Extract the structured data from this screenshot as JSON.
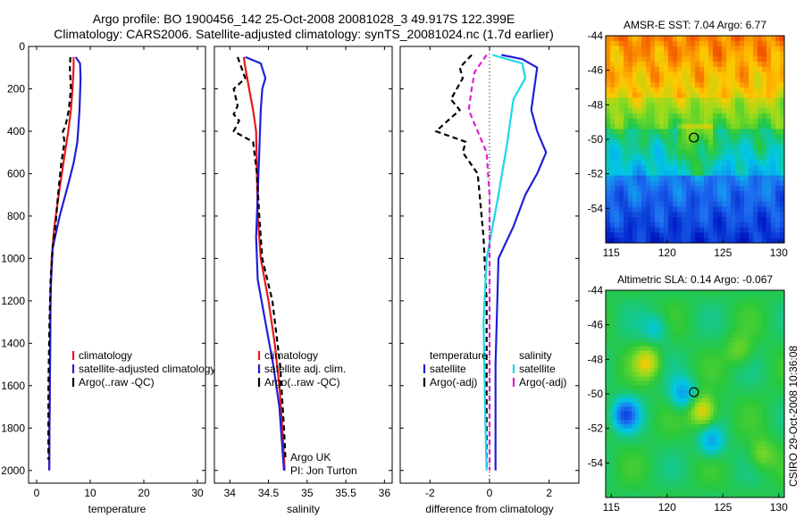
{
  "header": {
    "title_line1": "Argo profile: BO 1900456_142 25-Oct-2008 20081028_3 49.917S 122.399E",
    "title_line2": "Climatology: CARS2006. Satellite-adjusted climatology: synTS_20081024.nc (1.7d earlier)"
  },
  "side_label": "CSIRO 29-Oct-2008 10:36:08",
  "colors": {
    "climatology": "#e41a1c",
    "satellite": "#1f1fd8",
    "argo": "#000000",
    "satellite_salinity": "#19d9e8",
    "argo_salinity_adj": "#e01fd0"
  },
  "chart_data": [
    {
      "id": "temperature-panel",
      "type": "line",
      "xlabel": "temperature",
      "ylabel": "",
      "xlim": [
        -1.5,
        31.5
      ],
      "ylim": [
        2060,
        0
      ],
      "xticks": [
        0,
        10,
        20,
        30
      ],
      "yticks": [
        0,
        200,
        400,
        600,
        800,
        1000,
        1200,
        1400,
        1600,
        1800,
        2000
      ],
      "legend_position": "bottom-right",
      "annotations": [],
      "series": [
        {
          "name": "climatology",
          "color": "climatology",
          "dash": "",
          "x": [
            6.9,
            6.9,
            6.7,
            6.4,
            5.9,
            5.3,
            4.4,
            3.3,
            2.8,
            2.6,
            2.5,
            2.4,
            2.35
          ],
          "depth": [
            50,
            100,
            200,
            300,
            400,
            500,
            650,
            850,
            1000,
            1200,
            1500,
            1800,
            2000
          ]
        },
        {
          "name": "satellite-adjusted climatology",
          "color": "satellite",
          "dash": "",
          "x": [
            7.3,
            8.1,
            8.2,
            8.0,
            7.6,
            6.9,
            5.9,
            4.3,
            3.0,
            2.6,
            2.5,
            2.4,
            2.35
          ],
          "depth": [
            50,
            80,
            150,
            300,
            450,
            550,
            650,
            800,
            950,
            1150,
            1500,
            1800,
            2000
          ]
        },
        {
          "name": "Argo(..raw -QC)",
          "color": "argo",
          "dash": "6,4",
          "x": [
            6.3,
            6.2,
            6.4,
            6.0,
            5.6,
            5.3,
            4.9,
            5.2,
            4.6,
            4.0,
            3.5,
            3.0,
            2.6,
            2.4,
            2.2,
            2.2
          ],
          "depth": [
            50,
            100,
            200,
            300,
            350,
            380,
            400,
            450,
            550,
            700,
            850,
            950,
            1100,
            1300,
            1600,
            1950
          ]
        }
      ]
    },
    {
      "id": "salinity-panel",
      "type": "line",
      "xlabel": "salinity",
      "ylabel": "",
      "xlim": [
        33.8,
        36.1
      ],
      "ylim": [
        2060,
        0
      ],
      "xticks": [
        34,
        34.5,
        35,
        35.5,
        36
      ],
      "yticks": [
        0,
        200,
        400,
        600,
        800,
        1000,
        1200,
        1400,
        1600,
        1800,
        2000
      ],
      "legend_position": "bottom-right",
      "annotations": [
        "Argo UK",
        "PI: Jon Turton"
      ],
      "series": [
        {
          "name": "climatology",
          "color": "climatology",
          "dash": "",
          "x": [
            34.18,
            34.2,
            34.25,
            34.3,
            34.34,
            34.35,
            34.36,
            34.4,
            34.5,
            34.58,
            34.64,
            34.68,
            34.71
          ],
          "depth": [
            50,
            100,
            200,
            300,
            400,
            600,
            800,
            1000,
            1200,
            1400,
            1600,
            1800,
            2000
          ]
        },
        {
          "name": "satellite adj. clim.",
          "color": "satellite",
          "dash": "",
          "x": [
            34.2,
            34.4,
            34.46,
            34.42,
            34.4,
            34.38,
            34.36,
            34.34,
            34.36,
            34.46,
            34.56,
            34.64,
            34.7
          ],
          "depth": [
            50,
            80,
            150,
            200,
            300,
            500,
            700,
            900,
            1100,
            1300,
            1500,
            1700,
            2000
          ]
        },
        {
          "name": "Argo(..raw -QC)",
          "color": "argo",
          "dash": "6,4",
          "x": [
            34.1,
            34.2,
            34.05,
            34.1,
            34.05,
            34.12,
            34.05,
            34.3,
            34.35,
            34.38,
            34.42,
            34.55,
            34.65,
            34.7,
            34.72
          ],
          "depth": [
            50,
            150,
            200,
            280,
            320,
            350,
            400,
            450,
            600,
            800,
            1000,
            1200,
            1500,
            1800,
            1950
          ]
        }
      ]
    },
    {
      "id": "difference-panel",
      "type": "line",
      "xlabel": "difference from climatology",
      "ylabel": "",
      "xlim": [
        -3,
        3
      ],
      "ylim": [
        2060,
        0
      ],
      "xticks": [
        -2,
        0,
        2
      ],
      "yticks": [
        0,
        200,
        400,
        600,
        800,
        1000,
        1200,
        1400,
        1600,
        1800,
        2000
      ],
      "legend_position": "bottom",
      "legend_groups": [
        {
          "title": "temperature",
          "entries": [
            "satellite",
            "Argo(-adj)"
          ]
        },
        {
          "title": "salinity",
          "entries": [
            "satellite",
            "Argo(-adj)"
          ]
        }
      ],
      "series": [
        {
          "name": "temperature satellite",
          "color": "satellite",
          "dash": "",
          "x": [
            0.4,
            1.1,
            1.6,
            1.5,
            1.4,
            1.6,
            1.9,
            1.6,
            1.2,
            0.8,
            0.3,
            0.2,
            0.2
          ],
          "depth": [
            40,
            60,
            100,
            200,
            300,
            400,
            500,
            600,
            700,
            850,
            1000,
            1500,
            2000
          ]
        },
        {
          "name": "temperature Argo(-adj)",
          "color": "argo",
          "dash": "6,4",
          "x": [
            -0.6,
            -1.0,
            -0.9,
            -1.3,
            -1.0,
            -1.8,
            -0.8,
            -0.9,
            -0.4,
            -0.3,
            -0.2,
            -0.1,
            -0.1
          ],
          "depth": [
            40,
            100,
            150,
            250,
            300,
            400,
            450,
            500,
            600,
            750,
            900,
            1200,
            2000
          ]
        },
        {
          "name": "salinity satellite",
          "color": "satellite_salinity",
          "dash": "",
          "x": [
            0.1,
            1.1,
            1.2,
            0.8,
            0.7,
            0.6,
            0.3,
            -0.1,
            -0.2,
            -0.15,
            -0.1
          ],
          "depth": [
            40,
            80,
            150,
            250,
            350,
            450,
            700,
            1000,
            1300,
            1700,
            2000
          ]
        },
        {
          "name": "salinity Argo(-adj)",
          "color": "argo_salinity_adj",
          "dash": "6,4",
          "x": [
            -0.1,
            -0.5,
            -0.6,
            -0.7,
            -0.4,
            -0.1,
            0.0,
            0.0,
            0.0
          ],
          "depth": [
            40,
            120,
            200,
            300,
            400,
            500,
            700,
            1000,
            2000
          ]
        }
      ]
    },
    {
      "id": "sst-map",
      "type": "heatmap",
      "title": "AMSR-E SST: 7.04 Argo: 6.77",
      "xlim": [
        114.5,
        130.5
      ],
      "ylim": [
        -56,
        -44
      ],
      "xticks": [
        115,
        120,
        125,
        130
      ],
      "yticks": [
        -44,
        -46,
        -48,
        -50,
        -52,
        -54
      ],
      "argo_location": [
        122.4,
        -49.9
      ]
    },
    {
      "id": "sla-map",
      "type": "heatmap",
      "title": "Altimetric SLA: 0.14 Argo: -0.067",
      "xlim": [
        114.5,
        130.5
      ],
      "ylim": [
        -56,
        -44
      ],
      "xticks": [
        115,
        120,
        125,
        130
      ],
      "yticks": [
        -44,
        -46,
        -48,
        -50,
        -52,
        -54
      ],
      "argo_location": [
        122.4,
        -49.9
      ]
    }
  ]
}
